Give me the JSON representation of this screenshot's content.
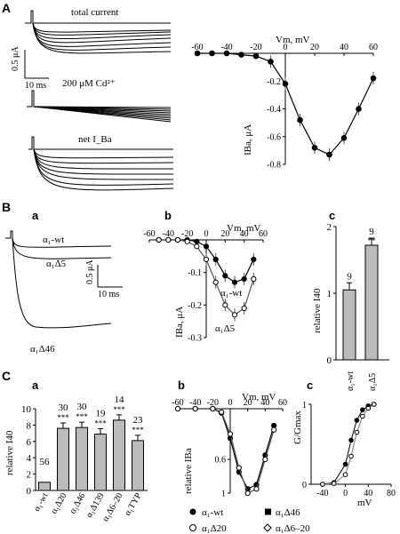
{
  "panel_labels": {
    "A": "A",
    "B": "B",
    "C": "C",
    "Ba": "a",
    "Bb": "b",
    "Bc": "c",
    "Ca": "a",
    "Cb": "b",
    "Cc": "c"
  },
  "A": {
    "trace_labels": [
      "total current",
      "200 μM Cd²⁺",
      "net I_Ba"
    ],
    "scale_y": "0.5 μA",
    "scale_x": "10 ms"
  },
  "B": {
    "trace_labels": [
      "α₁-wt",
      "α₁Δ5",
      "α₁Δ46"
    ],
    "scale_y": "0.5 μA",
    "scale_x": "10 ms",
    "curve_labels": [
      "α₁-wt",
      "α₁Δ5"
    ]
  },
  "C": {
    "legend": [
      "α₁-wt",
      "α₁Δ46",
      "α₁Δ20",
      "α₁Δ6–20"
    ]
  },
  "chart_data": [
    {
      "type": "line",
      "panel": "A-right",
      "xlabel": "Vm, mV",
      "ylabel": "IBa, μA",
      "xlim": [
        -60,
        60
      ],
      "ylim": [
        -0.8,
        0
      ],
      "xticks": [
        "-60",
        "-40",
        "-20",
        "0",
        "20",
        "40",
        "60"
      ],
      "yticks": [
        "-0.2",
        "-0.4",
        "-0.6",
        "-0.8"
      ],
      "x": [
        -60,
        -50,
        -40,
        -30,
        -20,
        -10,
        0,
        10,
        20,
        30,
        40,
        50,
        60
      ],
      "y": [
        0,
        0,
        0,
        -0.01,
        -0.02,
        -0.06,
        -0.22,
        -0.48,
        -0.68,
        -0.73,
        -0.61,
        -0.4,
        -0.18
      ]
    },
    {
      "type": "line",
      "panel": "B-b",
      "xlabel": "Vm, mV",
      "ylabel": "IBa, μA",
      "xlim": [
        -60,
        60
      ],
      "ylim": [
        -0.3,
        0
      ],
      "xticks": [
        "-60",
        "-40",
        "-20",
        "0",
        "20",
        "40",
        "60"
      ],
      "yticks": [
        "-0.1",
        "-0.2",
        "-0.3"
      ],
      "series": [
        {
          "name": "α₁-wt",
          "x": [
            -50,
            -40,
            -30,
            -20,
            -10,
            0,
            10,
            20,
            30,
            40,
            50
          ],
          "y": [
            0,
            0,
            0,
            0,
            -0.005,
            -0.02,
            -0.06,
            -0.11,
            -0.13,
            -0.12,
            -0.06
          ]
        },
        {
          "name": "α₁Δ5",
          "x": [
            -50,
            -40,
            -30,
            -20,
            -10,
            0,
            10,
            20,
            30,
            40,
            50
          ],
          "y": [
            0,
            0,
            0,
            -0.005,
            -0.02,
            -0.06,
            -0.13,
            -0.2,
            -0.23,
            -0.21,
            -0.12
          ]
        }
      ]
    },
    {
      "type": "bar",
      "panel": "B-c",
      "ylabel": "relative I40",
      "ylim": [
        0,
        2
      ],
      "yticks": [
        "0",
        "1",
        "2"
      ],
      "categories": [
        "α₁-wt",
        "α₁Δ5"
      ],
      "values": [
        1.05,
        1.72
      ],
      "n": [
        "9",
        "9"
      ],
      "significance": [
        "",
        "**"
      ]
    },
    {
      "type": "bar",
      "panel": "C-a",
      "ylabel": "relative I40",
      "ylim": [
        0,
        10
      ],
      "yticks": [
        "0",
        "2",
        "4",
        "6",
        "8",
        "10"
      ],
      "categories": [
        "α₁-wt",
        "α₁Δ20",
        "α₁Δ46",
        "α₁Δ139",
        "α₁Δ6–20",
        "α₁TYP"
      ],
      "values": [
        1,
        7.6,
        7.7,
        6.9,
        8.6,
        6.1
      ],
      "n": [
        "56",
        "30",
        "30",
        "19",
        "14",
        "23"
      ],
      "significance": [
        "",
        "***",
        "***",
        "***",
        "***",
        "***"
      ]
    },
    {
      "type": "line",
      "panel": "C-b",
      "xlabel": "Vm, mV",
      "ylabel": "relative IBa",
      "xlim": [
        -60,
        60
      ],
      "ylim": [
        -1,
        0
      ],
      "xticks": [
        "-60",
        "-40",
        "-20",
        "0",
        "20",
        "40",
        "60"
      ],
      "yticks": [
        "0.6",
        "1"
      ],
      "series": [
        {
          "name": "α₁-wt",
          "x": [
            -60,
            -40,
            -20,
            -10,
            0,
            10,
            20,
            30,
            40,
            50
          ],
          "y": [
            0,
            0,
            0,
            -0.05,
            -0.35,
            -0.75,
            -0.95,
            -0.9,
            -0.55,
            -0.2
          ]
        },
        {
          "name": "α₁Δ20",
          "x": [
            -60,
            -40,
            -20,
            -10,
            0,
            10,
            20,
            30,
            40,
            50
          ],
          "y": [
            0,
            0,
            0,
            -0.04,
            -0.3,
            -0.7,
            -1,
            -0.95,
            -0.6,
            -0.25
          ]
        }
      ]
    },
    {
      "type": "line",
      "panel": "C-c",
      "xlabel": "mV",
      "ylabel": "G/Gmax",
      "xlim": [
        -60,
        80
      ],
      "ylim": [
        0,
        1
      ],
      "xticks": [
        "-40",
        "0",
        "40",
        "80"
      ],
      "yticks": [
        "0",
        "1"
      ],
      "series": [
        {
          "name": "α₁-wt",
          "x": [
            -40,
            -20,
            0,
            10,
            20,
            30,
            40,
            50
          ],
          "y": [
            0,
            0.02,
            0.25,
            0.55,
            0.8,
            0.93,
            0.98,
            1
          ]
        },
        {
          "name": "α₁Δ20",
          "x": [
            -40,
            -20,
            0,
            10,
            20,
            30,
            40,
            50
          ],
          "y": [
            0,
            0.01,
            0.12,
            0.35,
            0.65,
            0.85,
            0.95,
            1
          ]
        }
      ]
    }
  ]
}
